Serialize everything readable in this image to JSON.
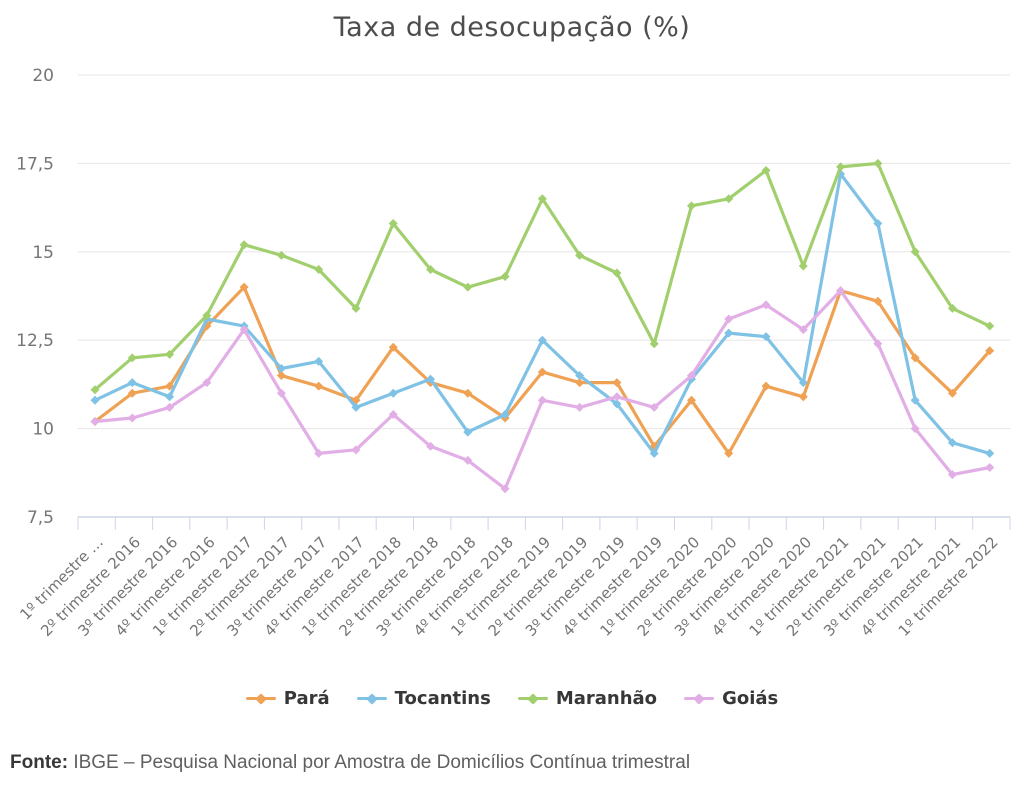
{
  "title": "Taxa de desocupação (%)",
  "footer": {
    "label": "Fonte:",
    "text": " IBGE – Pesquisa Nacional por Amostra de Domicílios Contínua trimestral"
  },
  "colors": {
    "para_orange": "#efa154",
    "tocantins_blue": "#7fc2e5",
    "maranhao_green": "#a2cf6e",
    "goias_purple": "#e2aee6",
    "gridline": "#e6e6e6",
    "axis": "#ccd6e4",
    "tick_text": "#757575",
    "title_text": "#4d4d4d"
  },
  "chart_data": {
    "type": "line",
    "title": "Taxa de desocupação (%)",
    "marker": "diamond",
    "grid": "horizontal",
    "legend_position": "bottom",
    "ylim": [
      7.5,
      20
    ],
    "y_ticks": [
      20,
      17.5,
      15,
      12.5,
      10,
      7.5
    ],
    "y_tick_labels": [
      "20",
      "17,5",
      "15",
      "12,5",
      "10",
      "7,5"
    ],
    "categories": [
      "1º trimestre …",
      "2º trimestre 2016",
      "3º trimestre 2016",
      "4º trimestre 2016",
      "1º trimestre 2017",
      "2º trimestre 2017",
      "3º trimestre 2017",
      "4º trimestre 2017",
      "1º trimestre 2018",
      "2º trimestre 2018",
      "3º trimestre 2018",
      "4º trimestre 2018",
      "1º trimestre 2019",
      "2º trimestre 2019",
      "3º trimestre 2019",
      "4º trimestre 2019",
      "1º trimestre 2020",
      "2º trimestre 2020",
      "3º trimestre 2020",
      "4º trimestre 2020",
      "1º trimestre 2021",
      "2º trimestre 2021",
      "3º trimestre 2021",
      "4º trimestre 2021",
      "1º trimestre 2022"
    ],
    "series": [
      {
        "name": "Pará",
        "color": "#efa154",
        "values": [
          10.2,
          11.0,
          11.2,
          12.9,
          14.0,
          11.5,
          11.2,
          10.8,
          12.3,
          11.3,
          11.0,
          10.3,
          11.6,
          11.3,
          11.3,
          9.5,
          10.8,
          9.3,
          11.2,
          10.9,
          13.9,
          13.6,
          12.0,
          11.0,
          12.2
        ]
      },
      {
        "name": "Tocantins",
        "color": "#7fc2e5",
        "values": [
          10.8,
          11.3,
          10.9,
          13.1,
          12.9,
          11.7,
          11.9,
          10.6,
          11.0,
          11.4,
          9.9,
          10.4,
          12.5,
          11.5,
          10.7,
          9.3,
          11.4,
          12.7,
          12.6,
          11.3,
          17.2,
          15.8,
          10.8,
          9.6,
          9.3
        ]
      },
      {
        "name": "Maranhão",
        "color": "#a2cf6e",
        "values": [
          11.1,
          12.0,
          12.1,
          13.2,
          15.2,
          14.9,
          14.5,
          13.4,
          15.8,
          14.5,
          14.0,
          14.3,
          16.5,
          14.9,
          14.4,
          12.4,
          16.3,
          16.5,
          17.3,
          14.6,
          17.4,
          17.5,
          15.0,
          13.4,
          12.9
        ]
      },
      {
        "name": "Goiás",
        "color": "#e2aee6",
        "values": [
          10.2,
          10.3,
          10.6,
          11.3,
          12.8,
          11.0,
          9.3,
          9.4,
          10.4,
          9.5,
          9.1,
          8.3,
          10.8,
          10.6,
          10.9,
          10.6,
          11.5,
          13.1,
          13.5,
          12.8,
          13.9,
          12.4,
          10.0,
          8.7,
          8.9
        ]
      }
    ]
  }
}
